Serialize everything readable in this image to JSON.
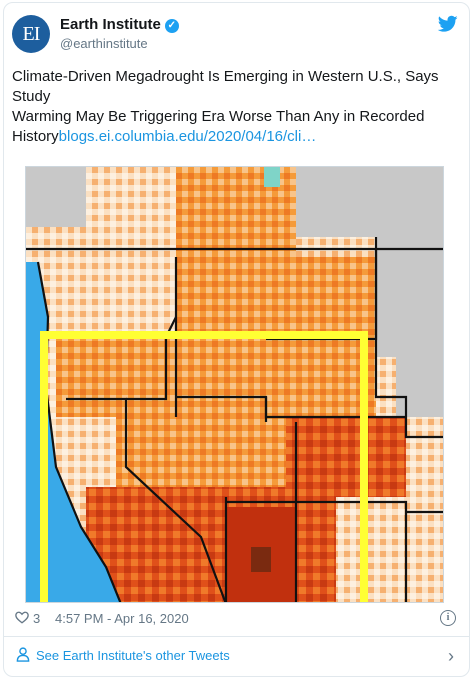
{
  "account": {
    "avatar_text": "EI",
    "name": "Earth Institute",
    "handle": "@earthinstitute",
    "verified_icon": "verified-badge-icon",
    "platform_icon": "twitter-bird-icon"
  },
  "tweet": {
    "line1": "Climate-Driven Megadrought Is Emerging in Western U.S., Says",
    "line2": "Study",
    "line3": "Warming May Be Triggering Era Worse Than Any in Recorded",
    "line4_prefix": "History",
    "link": "blogs.ei.columbia.edu/2020/04/16/cli…"
  },
  "map": {
    "icon": "western-us-drought-map",
    "highlight_box_color": "#ffff33",
    "ocean_color": "#39a9e8"
  },
  "meta": {
    "like_count": "3",
    "timestamp": "4:57 PM - Apr 16, 2020",
    "info_icon_text": "i"
  },
  "footer": {
    "see_more": "See Earth Institute's other Tweets"
  },
  "colors": {
    "accent": "#1b95e0",
    "text": "#14171a",
    "secondary": "#657786"
  }
}
